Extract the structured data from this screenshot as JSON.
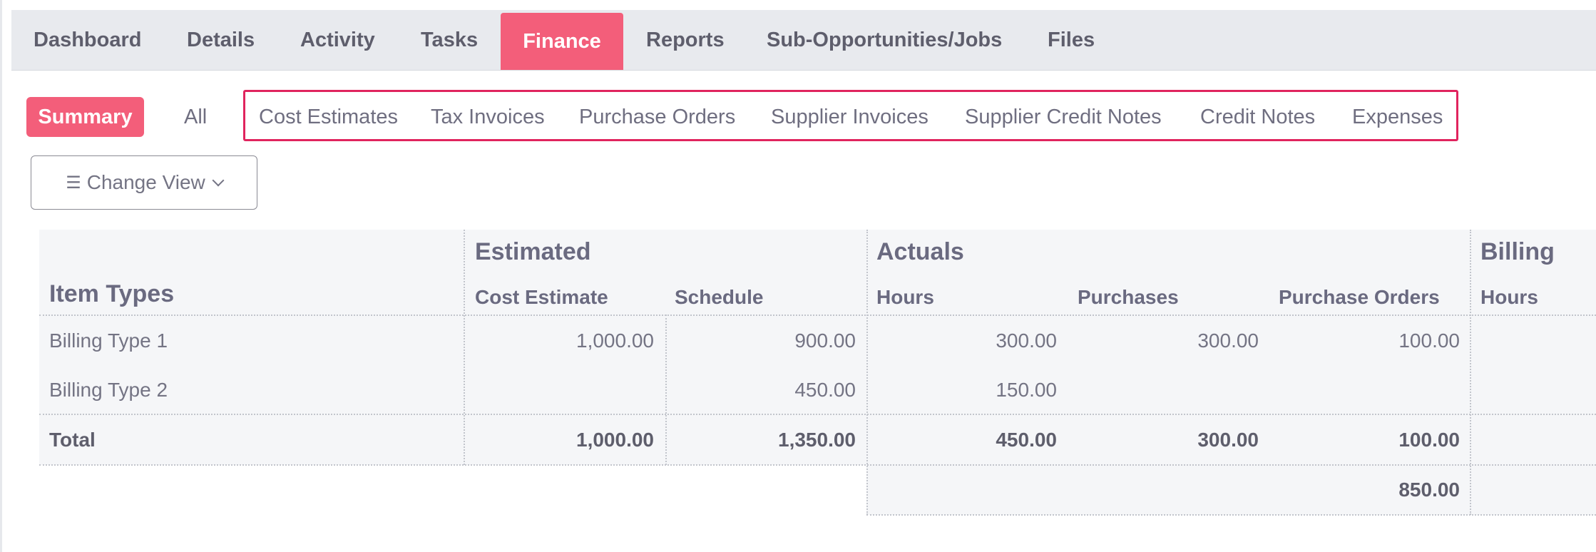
{
  "tabs": [
    {
      "label": "Dashboard"
    },
    {
      "label": "Details"
    },
    {
      "label": "Activity"
    },
    {
      "label": "Tasks"
    },
    {
      "label": "Finance",
      "active": true
    },
    {
      "label": "Reports"
    },
    {
      "label": "Sub-Opportunities/Jobs"
    },
    {
      "label": "Files"
    }
  ],
  "subnav": {
    "summary": "Summary",
    "all": "All",
    "items": [
      "Cost Estimates",
      "Tax Invoices",
      "Purchase Orders",
      "Supplier Invoices",
      "Supplier Credit Notes",
      "Credit Notes",
      "Expenses"
    ]
  },
  "toolbar": {
    "change_view": "Change View",
    "list_icon": "list-icon",
    "chevron_icon": "chevron-down-icon"
  },
  "table": {
    "item_types_header": "Item Types",
    "groups": {
      "estimated": "Estimated",
      "actuals": "Actuals",
      "billing": "Billing"
    },
    "columns": {
      "cost_estimate": "Cost Estimate",
      "schedule": "Schedule",
      "hours": "Hours",
      "purchases": "Purchases",
      "purchase_orders": "Purchase Orders",
      "billing_hours": "Hours"
    },
    "rows": [
      {
        "name": "Billing Type 1",
        "cost_estimate": "1,000.00",
        "schedule": "900.00",
        "hours": "300.00",
        "purchases": "300.00",
        "purchase_orders": "100.00"
      },
      {
        "name": "Billing Type 2",
        "cost_estimate": "",
        "schedule": "450.00",
        "hours": "150.00",
        "purchases": "",
        "purchase_orders": ""
      }
    ],
    "total": {
      "name": "Total",
      "cost_estimate": "1,000.00",
      "schedule": "1,350.00",
      "hours": "450.00",
      "purchases": "300.00",
      "purchase_orders": "100.00"
    },
    "actuals_grand_total": "850.00"
  },
  "colors": {
    "accent": "#f35e7a",
    "highlight_border": "#e0245e"
  }
}
